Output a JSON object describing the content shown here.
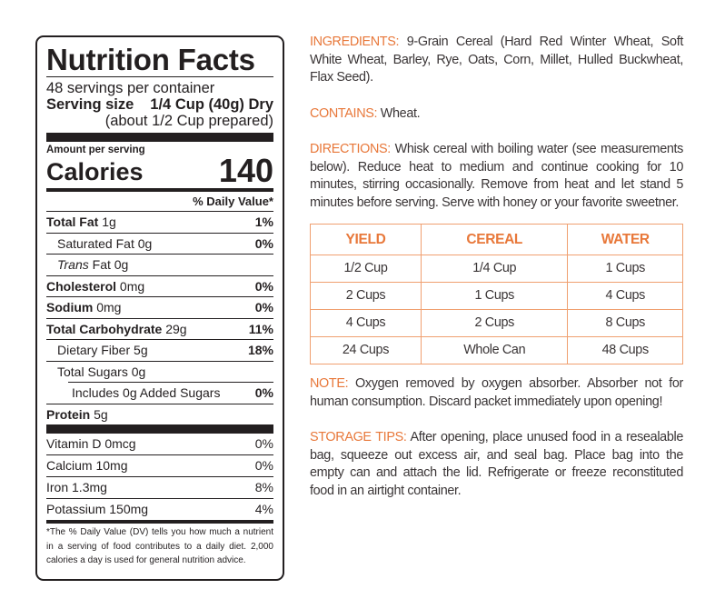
{
  "nutrition_facts": {
    "title": "Nutrition Facts",
    "servings_per_container": "48 servings per container",
    "serving_size_label": "Serving size",
    "serving_size_value": "1/4 Cup (40g) Dry",
    "serving_size_prepared": "(about 1/2 Cup prepared)",
    "amount_per_serving": "Amount per serving",
    "calories_label": "Calories",
    "calories_value": "140",
    "daily_value_header": "% Daily Value*",
    "nutrients": [
      {
        "name": "Total Fat",
        "amount": "1g",
        "dv": "1%"
      },
      {
        "name": "Saturated Fat",
        "amount": "0g",
        "dv": "0%"
      },
      {
        "name": "Trans",
        "suffix": "Fat",
        "amount": "0g",
        "dv": ""
      },
      {
        "name": "Cholesterol",
        "amount": "0mg",
        "dv": "0%"
      },
      {
        "name": "Sodium",
        "amount": "0mg",
        "dv": "0%"
      },
      {
        "name": "Total Carbohydrate",
        "amount": "29g",
        "dv": "11%"
      },
      {
        "name": "Dietary Fiber",
        "amount": "5g",
        "dv": "18%"
      },
      {
        "name": "Total Sugars",
        "amount": "0g",
        "dv": ""
      },
      {
        "name": "Includes 0g Added Sugars",
        "amount": "",
        "dv": "0%"
      },
      {
        "name": "Protein",
        "amount": "5g",
        "dv": ""
      }
    ],
    "vitamins": [
      {
        "name": "Vitamin D 0mcg",
        "dv": "0%"
      },
      {
        "name": "Calcium 10mg",
        "dv": "0%"
      },
      {
        "name": "Iron 1.3mg",
        "dv": "8%"
      },
      {
        "name": "Potassium 150mg",
        "dv": "4%"
      }
    ],
    "footnote": "*The % Daily Value (DV) tells you how much a nutrient in a serving of food contributes to a daily diet. 2,000 calories a day is used for general nutrition advice."
  },
  "info": {
    "accent_color": "#e8783a",
    "ingredients_label": "INGREDIENTS:",
    "ingredients_text": " 9-Grain Cereal (Hard Red Winter Wheat, Soft White Wheat, Barley, Rye, Oats, Corn, Millet, Hulled Buckwheat, Flax Seed).",
    "contains_label": "CONTAINS:",
    "contains_text": " Wheat.",
    "directions_label": "DIRECTIONS:",
    "directions_text": " Whisk cereal with boiling water (see measurements below). Reduce heat to medium and continue cooking for 10 minutes, stirring occasionally. Remove from heat and let stand 5 minutes before serving. Serve with honey or your favorite sweetner.",
    "yield_table": {
      "headers": [
        "YIELD",
        "CEREAL",
        "WATER"
      ],
      "rows": [
        [
          "1/2 Cup",
          "1/4 Cup",
          "1 Cups"
        ],
        [
          "2 Cups",
          "1 Cups",
          "4 Cups"
        ],
        [
          "4 Cups",
          "2 Cups",
          "8 Cups"
        ],
        [
          "24 Cups",
          "Whole Can",
          "48 Cups"
        ]
      ]
    },
    "note_label": "NOTE:",
    "note_text": " Oxygen removed by oxygen absorber. Absorber not for human consumption. Discard packet immediately upon opening!",
    "storage_label": "STORAGE TIPS:",
    "storage_text": " After opening, place unused food in a resealable bag, squeeze out excess air, and seal bag. Place bag into the empty can and attach the lid. Refrigerate or freeze reconstituted food in an airtight container."
  }
}
